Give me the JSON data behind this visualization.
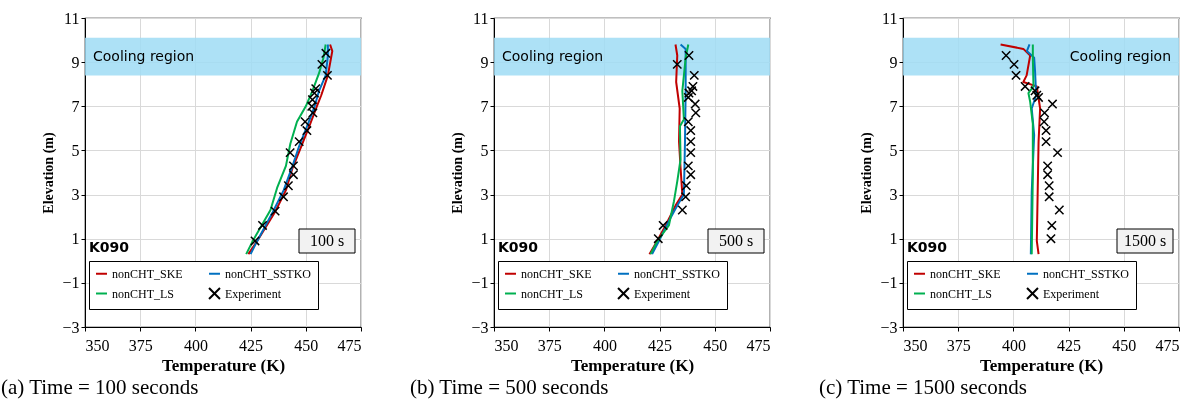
{
  "chart_data": [
    {
      "type": "line",
      "title": "(a) Time = 100 seconds",
      "xlabel": "Temperature  (K)",
      "ylabel": "Elevation (m)",
      "xlim": [
        350,
        475
      ],
      "ylim": [
        -3,
        11
      ],
      "xticks": [
        350,
        375,
        400,
        425,
        450,
        475
      ],
      "yticks": [
        -3,
        -1,
        1,
        3,
        5,
        7,
        9,
        11
      ],
      "grid": true,
      "legend": "bottom",
      "bands": [
        {
          "axis": "y",
          "from": 8.4,
          "to": 10.1,
          "color": "#9fdcf5",
          "label": "Cooling region"
        }
      ],
      "annotations": [
        "K090",
        "100 s"
      ],
      "series": [
        {
          "name": "nonCHT_SKE",
          "color": "#c00000",
          "x": [
            424,
            428,
            436,
            441,
            444,
            448,
            452,
            455,
            457,
            460,
            462,
            461
          ],
          "values": [
            0.3,
            0.9,
            2.2,
            3.2,
            4.2,
            5.2,
            6.2,
            7.0,
            7.5,
            8.4,
            9.5,
            9.8
          ]
        },
        {
          "name": "nonCHT_SSTKO",
          "type": "line",
          "color": "#0070c0",
          "x": [
            425,
            428,
            435,
            440,
            444,
            447,
            451,
            454,
            456,
            459,
            460,
            460
          ],
          "values": [
            0.3,
            0.9,
            2.2,
            3.2,
            4.3,
            5.2,
            6.2,
            7.0,
            7.7,
            8.4,
            9.3,
            9.8
          ]
        },
        {
          "name": "nonCHT_LS",
          "type": "line",
          "color": "#00b050",
          "x": [
            423,
            426,
            434,
            437,
            441,
            443,
            446,
            450,
            453,
            456,
            458,
            459
          ],
          "values": [
            0.3,
            0.9,
            2.3,
            3.3,
            4.3,
            5.3,
            6.3,
            7.0,
            7.7,
            8.5,
            9.2,
            9.8
          ]
        },
        {
          "name": "Experiment",
          "type": "scatter",
          "marker": "cross",
          "color": "#000000",
          "x": [
            427,
            430.4,
            436.1,
            439.9,
            442.1,
            444.4,
            444.4,
            442.9,
            447,
            450.5,
            449.7,
            453.2,
            452.7,
            453,
            453.9,
            454.5,
            459.8,
            457.3,
            459.1
          ],
          "values": [
            0.9,
            1.6,
            2.25,
            2.9,
            3.4,
            3.9,
            4.3,
            4.9,
            5.4,
            5.9,
            6.3,
            6.7,
            7.0,
            7.3,
            7.6,
            7.8,
            8.4,
            8.9,
            9.4
          ]
        }
      ]
    },
    {
      "type": "line",
      "title": "(b) Time = 500 seconds",
      "xlabel": "Temperature  (K)",
      "ylabel": "Elevation (m)",
      "xlim": [
        350,
        475
      ],
      "ylim": [
        -3,
        11
      ],
      "xticks": [
        350,
        375,
        400,
        425,
        450,
        475
      ],
      "yticks": [
        -3,
        -1,
        1,
        3,
        5,
        7,
        9,
        11
      ],
      "grid": true,
      "legend": "bottom",
      "bands": [
        {
          "axis": "y",
          "from": 8.4,
          "to": 10.1,
          "color": "#9fdcf5",
          "label": "Cooling region"
        }
      ],
      "annotations": [
        "K090",
        "500 s"
      ],
      "series": [
        {
          "name": "nonCHT_SKE",
          "color": "#c00000",
          "x": [
            420.4,
            423.9,
            427.7,
            432.2,
            435.3,
            434.5,
            433.8,
            434.1,
            432.5,
            433,
            432.2
          ],
          "values": [
            0.3,
            0.9,
            1.6,
            2.5,
            3.0,
            4.2,
            5.4,
            6.9,
            8.1,
            9.3,
            9.8
          ]
        },
        {
          "name": "nonCHT_SSTKO",
          "type": "line",
          "color": "#0070c0",
          "x": [
            421.6,
            424.7,
            429.2,
            433,
            436,
            436.5,
            436.8,
            436.8,
            434.5
          ],
          "values": [
            0.3,
            0.9,
            1.8,
            2.5,
            3.0,
            5.4,
            7.7,
            9.6,
            9.8
          ]
        },
        {
          "name": "nonCHT_LS",
          "type": "line",
          "color": "#00b050",
          "x": [
            420.9,
            424,
            429.2,
            431.5,
            433,
            434.5,
            434.2,
            436,
            435.3,
            436.8,
            438
          ],
          "values": [
            0.3,
            0.9,
            1.6,
            2.7,
            3.6,
            4.6,
            6.1,
            6.4,
            7.7,
            9.2,
            9.8
          ]
        },
        {
          "name": "Experiment",
          "type": "scatter",
          "marker": "cross",
          "color": "#000000",
          "x": [
            424.4,
            426.6,
            435.3,
            436.8,
            437.1,
            439.1,
            438,
            439.1,
            439.1,
            439.1,
            438,
            441.4,
            441.1,
            438,
            438.3,
            439.5,
            440.1,
            440.7,
            433,
            438.3
          ],
          "values": [
            1.0,
            1.6,
            2.3,
            2.9,
            3.4,
            3.9,
            4.3,
            4.9,
            5.4,
            5.9,
            6.3,
            6.7,
            7.1,
            7.4,
            7.6,
            7.7,
            7.9,
            8.4,
            8.9,
            9.3
          ]
        }
      ]
    },
    {
      "type": "line",
      "title": "(c) Time = 1500 seconds",
      "xlabel": "Temperature  (K)",
      "ylabel": "Elevation (m)",
      "xlim": [
        350,
        475
      ],
      "ylim": [
        -3,
        11
      ],
      "xticks": [
        350,
        375,
        400,
        425,
        450,
        475
      ],
      "yticks": [
        -3,
        -1,
        1,
        3,
        5,
        7,
        9,
        11
      ],
      "grid": true,
      "legend": "bottom",
      "bands": [
        {
          "axis": "y",
          "from": 8.4,
          "to": 10.1,
          "color": "#9fdcf5",
          "label": "Cooling region"
        }
      ],
      "annotations": [
        "K090",
        "1500 s"
      ],
      "series": [
        {
          "name": "nonCHT_SKE",
          "color": "#c00000",
          "x": [
            411.4,
            410.6,
            411.4,
            412.1,
            410.6,
            404.5,
            406,
            407.6,
            404.5,
            394.2
          ],
          "values": [
            0.3,
            0.9,
            5.4,
            6.9,
            7.9,
            8.1,
            8.4,
            9.3,
            9.6,
            9.8
          ]
        },
        {
          "name": "nonCHT_SSTKO",
          "type": "line",
          "color": "#0070c0",
          "x": [
            407.9,
            408.3,
            409.4,
            408.3,
            410.3,
            409.8,
            409.4,
            406.1,
            407.3
          ],
          "values": [
            0.3,
            3.1,
            5.7,
            6.9,
            7.5,
            8.6,
            9.2,
            9.5,
            9.8
          ]
        },
        {
          "name": "nonCHT_LS",
          "type": "line",
          "color": "#00b050",
          "x": [
            408.3,
            408.8,
            408.8,
            407.6,
            406.8,
            409.1,
            408.8,
            408.8
          ],
          "values": [
            0.3,
            3.9,
            6.2,
            7.2,
            7.6,
            7.9,
            9.2,
            9.8
          ]
        },
        {
          "name": "Experiment",
          "type": "scatter",
          "marker": "cross",
          "color": "#000000",
          "x": [
            417,
            417.4,
            420.8,
            416.2,
            416.2,
            415.5,
            415.5,
            420,
            414.8,
            414.8,
            413.9,
            414.1,
            417.7,
            411.4,
            410.6,
            409.8,
            405.3,
            401.2,
            400.3,
            396.7
          ],
          "values": [
            1.0,
            1.6,
            2.3,
            2.9,
            3.4,
            3.9,
            4.3,
            4.9,
            5.4,
            5.9,
            6.3,
            6.7,
            7.1,
            7.4,
            7.5,
            7.7,
            7.9,
            8.4,
            8.9,
            9.3
          ]
        }
      ]
    }
  ]
}
